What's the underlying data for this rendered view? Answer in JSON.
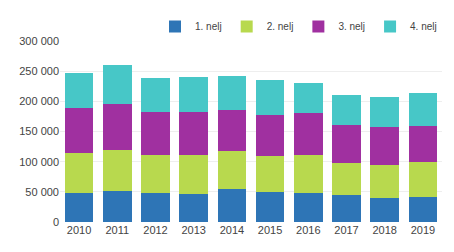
{
  "chart_data": {
    "type": "bar",
    "stacked": true,
    "categories": [
      "2010",
      "2011",
      "2012",
      "2013",
      "2014",
      "2015",
      "2016",
      "2017",
      "2018",
      "2019"
    ],
    "series": [
      {
        "name": "1. nelj",
        "color": "#2E75B6",
        "values": [
          48000,
          51000,
          48000,
          47000,
          54000,
          50000,
          48000,
          45000,
          40000,
          42000
        ]
      },
      {
        "name": "2. nelj",
        "color": "#B8D94E",
        "values": [
          67000,
          68000,
          63000,
          64000,
          64000,
          60000,
          63000,
          53000,
          55000,
          57000
        ]
      },
      {
        "name": "3. nelj",
        "color": "#A030A0",
        "values": [
          74000,
          76000,
          72000,
          72000,
          68000,
          67000,
          69000,
          63000,
          63000,
          60000
        ]
      },
      {
        "name": "4. nelj",
        "color": "#47C7C7",
        "values": [
          58000,
          65000,
          55000,
          58000,
          56000,
          59000,
          51000,
          50000,
          50000,
          55000
        ]
      }
    ],
    "ylim": [
      0,
      300000
    ],
    "yticks": [
      0,
      {
        "value": 50000,
        "label": "50 000"
      },
      {
        "value": 100000,
        "label": "100 000"
      },
      {
        "value": 150000,
        "label": "150 000"
      },
      {
        "value": 200000,
        "label": "200 000"
      },
      {
        "value": 250000,
        "label": "250 000"
      },
      {
        "value": 300000,
        "label": "300 000"
      }
    ],
    "grid": true,
    "legend": "upper right"
  }
}
